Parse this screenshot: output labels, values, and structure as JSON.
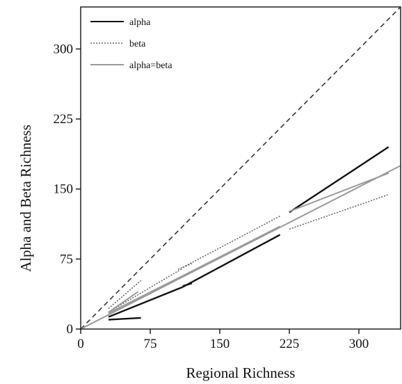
{
  "chart_data": {
    "type": "line",
    "xlabel": "Regional Richness",
    "ylabel": "Alpha and Beta Richness",
    "xlim": [
      0,
      345
    ],
    "ylim": [
      0,
      345
    ],
    "xticks": [
      0,
      75,
      150,
      225,
      300
    ],
    "yticks": [
      0,
      75,
      150,
      225,
      300
    ],
    "grid": false,
    "legend_position": "top-left",
    "legend": [
      {
        "label": "alpha",
        "style": "solid",
        "color": "#111111"
      },
      {
        "label": "beta",
        "style": "dotted",
        "color": "#666666"
      },
      {
        "label": "alpha=beta",
        "style": "solid",
        "color": "#9a9a9a"
      }
    ],
    "diagonal": {
      "style": "dashed",
      "color": "#333333",
      "x": [
        0,
        345
      ],
      "y": [
        0,
        345
      ]
    },
    "series": [
      {
        "legend_ref": 2,
        "x": [
          0,
          345
        ],
        "y": [
          0,
          175
        ]
      },
      {
        "legend_ref": 0,
        "x": [
          30,
          65
        ],
        "y": [
          10,
          12
        ]
      },
      {
        "legend_ref": 0,
        "x": [
          30,
          110
        ],
        "y": [
          13,
          45
        ]
      },
      {
        "legend_ref": 0,
        "x": [
          110,
          120
        ],
        "y": [
          46,
          49
        ]
      },
      {
        "legend_ref": 0,
        "x": [
          110,
          215
        ],
        "y": [
          45,
          101
        ]
      },
      {
        "legend_ref": 0,
        "x": [
          225,
          332
        ],
        "y": [
          125,
          195
        ]
      },
      {
        "legend_ref": 1,
        "x": [
          30,
          65
        ],
        "y": [
          22,
          52
        ]
      },
      {
        "legend_ref": 1,
        "x": [
          30,
          110
        ],
        "y": [
          18,
          65
        ]
      },
      {
        "legend_ref": 1,
        "x": [
          105,
          120
        ],
        "y": [
          64,
          70
        ]
      },
      {
        "legend_ref": 1,
        "x": [
          110,
          215
        ],
        "y": [
          66,
          121
        ]
      },
      {
        "legend_ref": 1,
        "x": [
          225,
          332
        ],
        "y": [
          107,
          144
        ]
      },
      {
        "legend_ref": 2,
        "x": [
          30,
          62
        ],
        "y": [
          18,
          40
        ]
      },
      {
        "legend_ref": 2,
        "x": [
          30,
          110
        ],
        "y": [
          17,
          57
        ]
      },
      {
        "legend_ref": 2,
        "x": [
          110,
          215
        ],
        "y": [
          57,
          110
        ]
      },
      {
        "legend_ref": 2,
        "x": [
          225,
          332
        ],
        "y": [
          126,
          167
        ]
      }
    ]
  }
}
